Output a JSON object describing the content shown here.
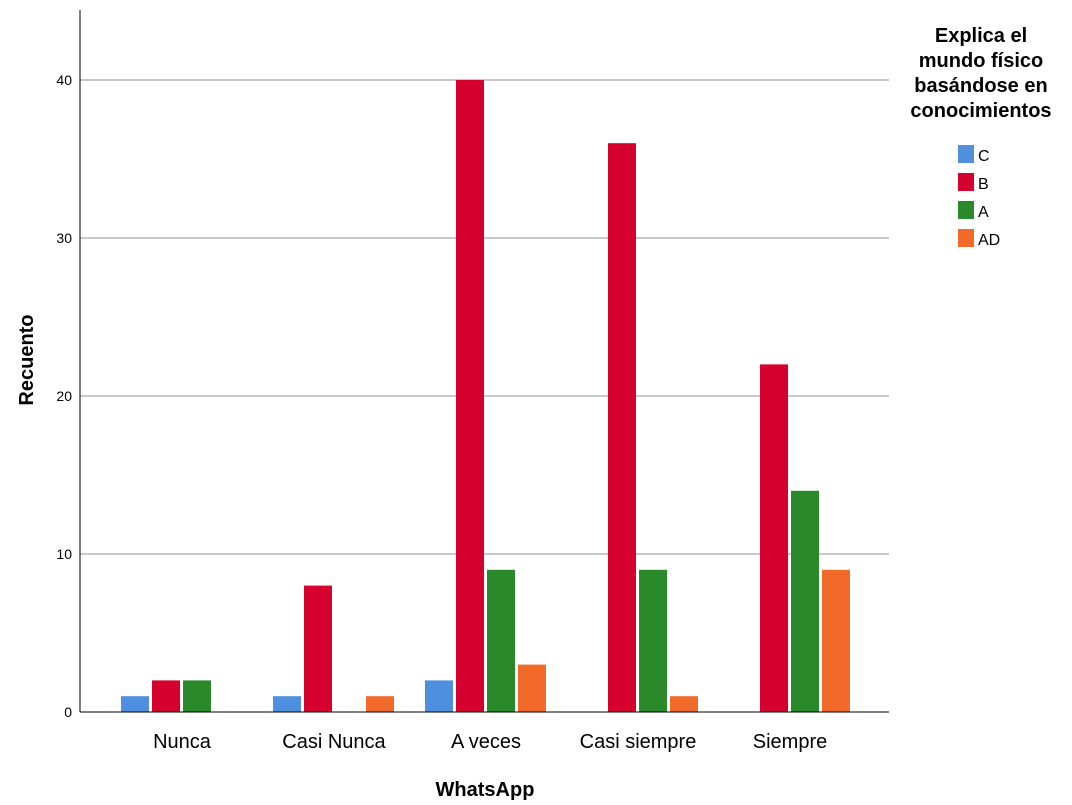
{
  "chart_data": {
    "type": "bar",
    "xlabel": "WhatsApp",
    "ylabel": "Recuento",
    "categories": [
      "Nunca",
      "Casi Nunca",
      "A veces",
      "Casi siempre",
      "Siempre"
    ],
    "ylim": [
      0,
      45
    ],
    "yticks": [
      0,
      10,
      20,
      30,
      40
    ],
    "grid": true,
    "legend_position": "top-right",
    "legend_title": [
      "Explica el",
      "mundo físico",
      "basándose en",
      "conocimientos"
    ],
    "series": [
      {
        "name": "C",
        "color": "#4f8fe0",
        "values": [
          1,
          1,
          2,
          0,
          0
        ]
      },
      {
        "name": "B",
        "color": "#d6002f",
        "values": [
          2,
          8,
          40,
          36,
          22
        ]
      },
      {
        "name": "A",
        "color": "#2a8a2a",
        "values": [
          2,
          0,
          9,
          9,
          14
        ]
      },
      {
        "name": "AD",
        "color": "#f26a2a",
        "values": [
          0,
          1,
          3,
          1,
          9
        ]
      }
    ]
  }
}
